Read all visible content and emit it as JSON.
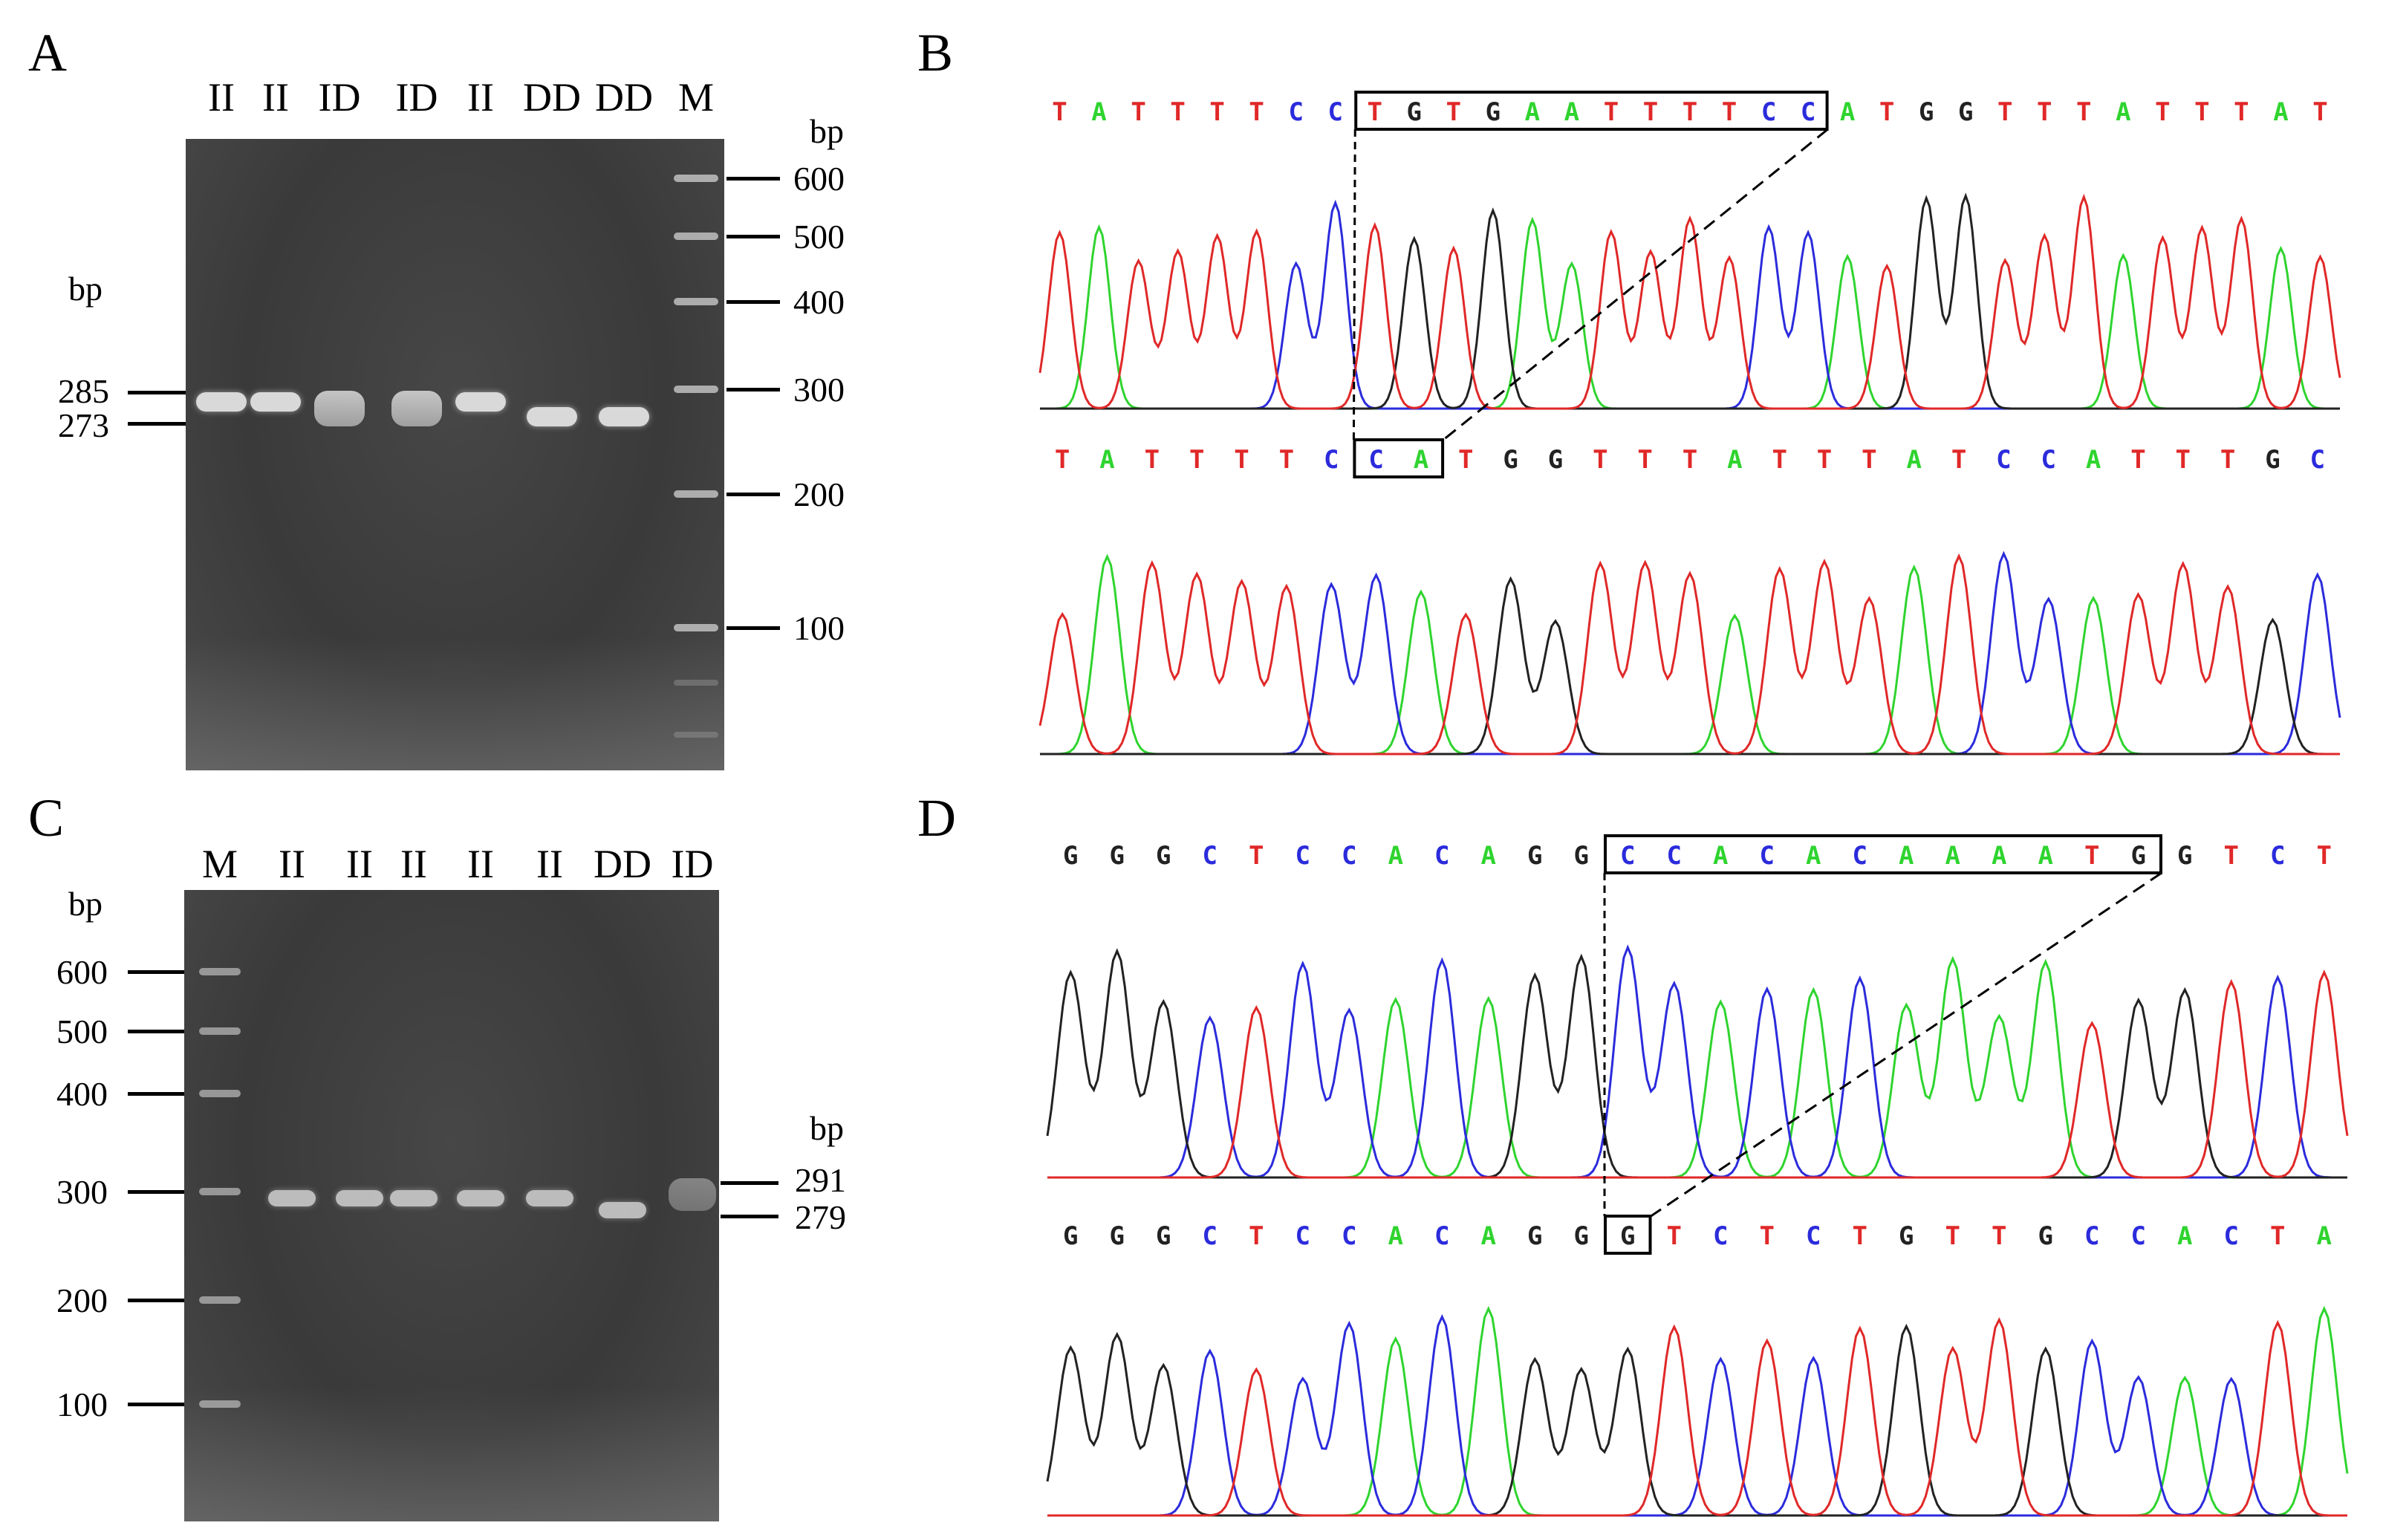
{
  "panels": {
    "A": {
      "letter": "A",
      "lanes": [
        "II",
        "II",
        "ID",
        "ID",
        "II",
        "DD",
        "DD",
        "M"
      ],
      "left_bp_header": "bp",
      "left_markers": [
        "285",
        "273"
      ],
      "right_bp_header": "bp",
      "ladder_markers": [
        "600",
        "500",
        "400",
        "300",
        "200",
        "100"
      ],
      "lane_genotype_bands": [
        [
          "285"
        ],
        [
          "285"
        ],
        [
          "285",
          "273"
        ],
        [
          "285",
          "273"
        ],
        [
          "285"
        ],
        [
          "273"
        ],
        [
          "273"
        ]
      ]
    },
    "B": {
      "letter": "B",
      "top_sequence": [
        "T",
        "A",
        "T",
        "T",
        "T",
        "T",
        "C",
        "C",
        "T",
        "G",
        "T",
        "G",
        "A",
        "A",
        "T",
        "T",
        "T",
        "T",
        "C",
        "C",
        "A",
        "T",
        "G",
        "G",
        "T",
        "T",
        "T",
        "A",
        "T",
        "T",
        "T",
        "A",
        "T"
      ],
      "top_boxed_range": [
        8,
        19
      ],
      "bottom_sequence": [
        "T",
        "A",
        "T",
        "T",
        "T",
        "T",
        "C",
        "C",
        "A",
        "T",
        "G",
        "G",
        "T",
        "T",
        "T",
        "A",
        "T",
        "T",
        "T",
        "A",
        "T",
        "C",
        "C",
        "A",
        "T",
        "T",
        "T",
        "G",
        "C"
      ],
      "bottom_boxed_range": [
        7,
        8
      ]
    },
    "C": {
      "letter": "C",
      "lanes": [
        "M",
        "II",
        "II",
        "II",
        "II",
        "II",
        "DD",
        "ID"
      ],
      "left_bp_header": "bp",
      "ladder_markers": [
        "600",
        "500",
        "400",
        "300",
        "200",
        "100"
      ],
      "right_bp_header": "bp",
      "right_markers": [
        "291",
        "279"
      ],
      "lane_genotype_bands": [
        [
          "291"
        ],
        [
          "291"
        ],
        [
          "291"
        ],
        [
          "291"
        ],
        [
          "291"
        ],
        [
          "279"
        ],
        [
          "291",
          "279"
        ]
      ]
    },
    "D": {
      "letter": "D",
      "top_sequence": [
        "G",
        "G",
        "G",
        "C",
        "T",
        "C",
        "C",
        "A",
        "C",
        "A",
        "G",
        "G",
        "C",
        "C",
        "A",
        "C",
        "A",
        "C",
        "A",
        "A",
        "A",
        "A",
        "T",
        "G",
        "G",
        "T",
        "C",
        "T"
      ],
      "top_boxed_range": [
        12,
        23
      ],
      "bottom_sequence": [
        "G",
        "G",
        "G",
        "C",
        "T",
        "C",
        "C",
        "A",
        "C",
        "A",
        "G",
        "G",
        "G",
        "T",
        "C",
        "T",
        "C",
        "T",
        "G",
        "T",
        "T",
        "G",
        "C",
        "C",
        "A",
        "C",
        "T",
        "A"
      ],
      "bottom_boxed_range": [
        12,
        12
      ]
    }
  },
  "colors": {
    "A": "#2fd42f",
    "C": "#2b2bdc",
    "G": "#222222",
    "T": "#e02828",
    "gel_background": "#3b3b3b",
    "band": "#d9d9d9"
  }
}
